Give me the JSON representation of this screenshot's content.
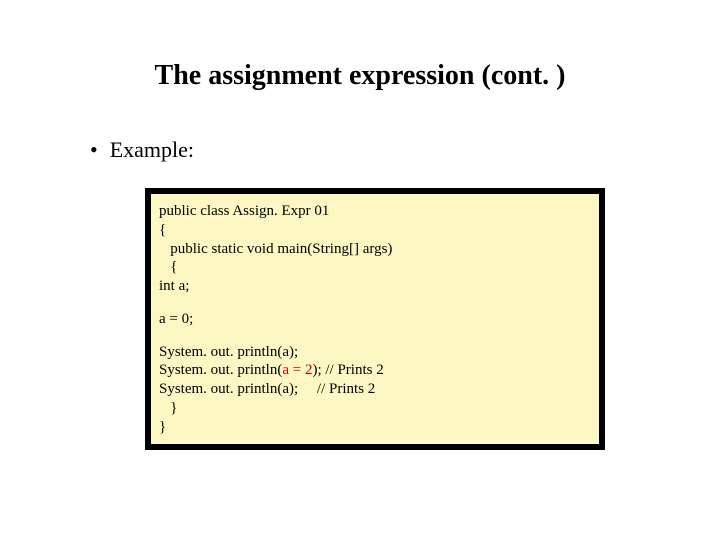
{
  "title": "The assignment expression (cont. )",
  "bullet_label": "Example:",
  "code": {
    "block1": {
      "l1": "public class Assign. Expr 01",
      "l2": "{",
      "l3": "   public static void main(String[] args)",
      "l4": "   {",
      "l5": "int a;"
    },
    "block2": {
      "l1": "a = 0;"
    },
    "block3": {
      "l1": "System. out. println(a);",
      "l2_pre": "System. out. println(",
      "l2_red": "a = 2",
      "l2_post": "); // Prints 2",
      "l3": "System. out. println(a);     // Prints 2",
      "l4": "   }",
      "l5": "}"
    }
  },
  "colors": {
    "background": "#ffffff",
    "text": "#000000",
    "code_background": "#fdf7c3",
    "code_border": "#000000",
    "highlight": "#cc0000"
  }
}
